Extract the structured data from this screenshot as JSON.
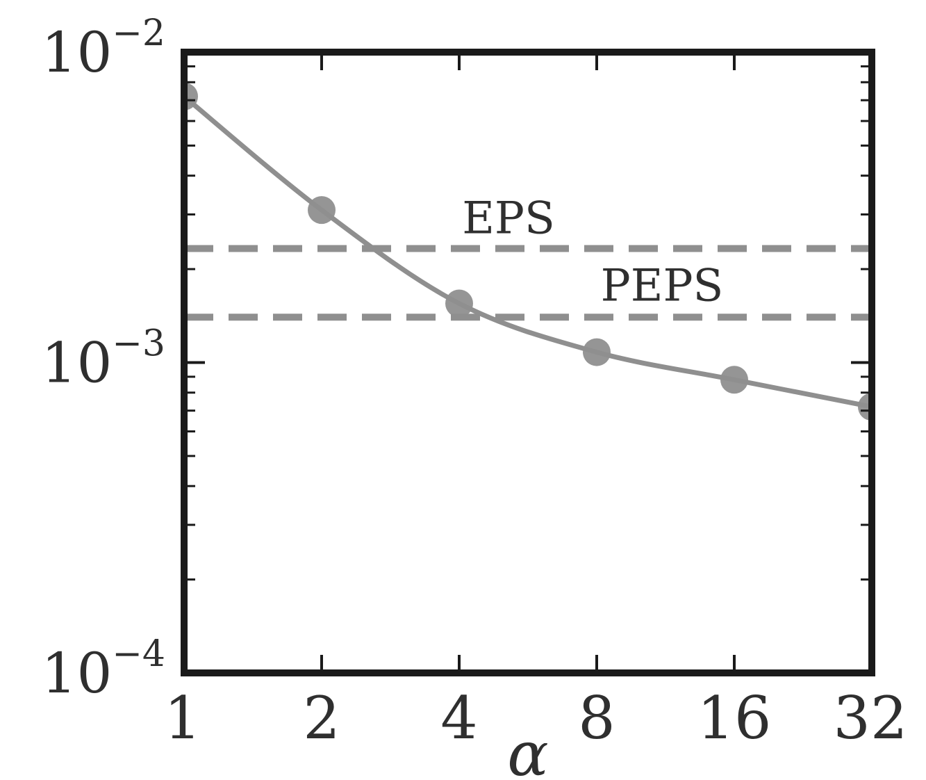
{
  "chart_data": {
    "type": "line",
    "xscale": "log2",
    "yscale": "log10",
    "xlabel": "α",
    "ylabel": "",
    "xlim": [
      1,
      32
    ],
    "ylim": [
      0.0001,
      0.01
    ],
    "xticks": [
      1,
      2,
      4,
      8,
      16,
      32
    ],
    "xtick_labels": [
      "1",
      "2",
      "4",
      "8",
      "16",
      "32"
    ],
    "yticks": [
      0.01,
      0.001,
      0.0001
    ],
    "ytick_labels": [
      {
        "base": "10",
        "exp": "−2"
      },
      {
        "base": "10",
        "exp": "−3"
      },
      {
        "base": "10",
        "exp": "−4"
      }
    ],
    "grid": false,
    "series": [
      {
        "x": [
          1,
          2,
          4,
          8,
          16,
          32
        ],
        "y": [
          0.0072,
          0.0031,
          0.00155,
          0.00108,
          0.00088,
          0.00072
        ],
        "color": "#8f8f8f",
        "marker": "circle"
      }
    ],
    "hlines": [
      {
        "label": "EPS",
        "y": 0.00233,
        "color": "#8f8f8f",
        "style": "dashed"
      },
      {
        "label": "PEPS",
        "y": 0.0014,
        "color": "#8f8f8f",
        "style": "dashed"
      }
    ]
  }
}
